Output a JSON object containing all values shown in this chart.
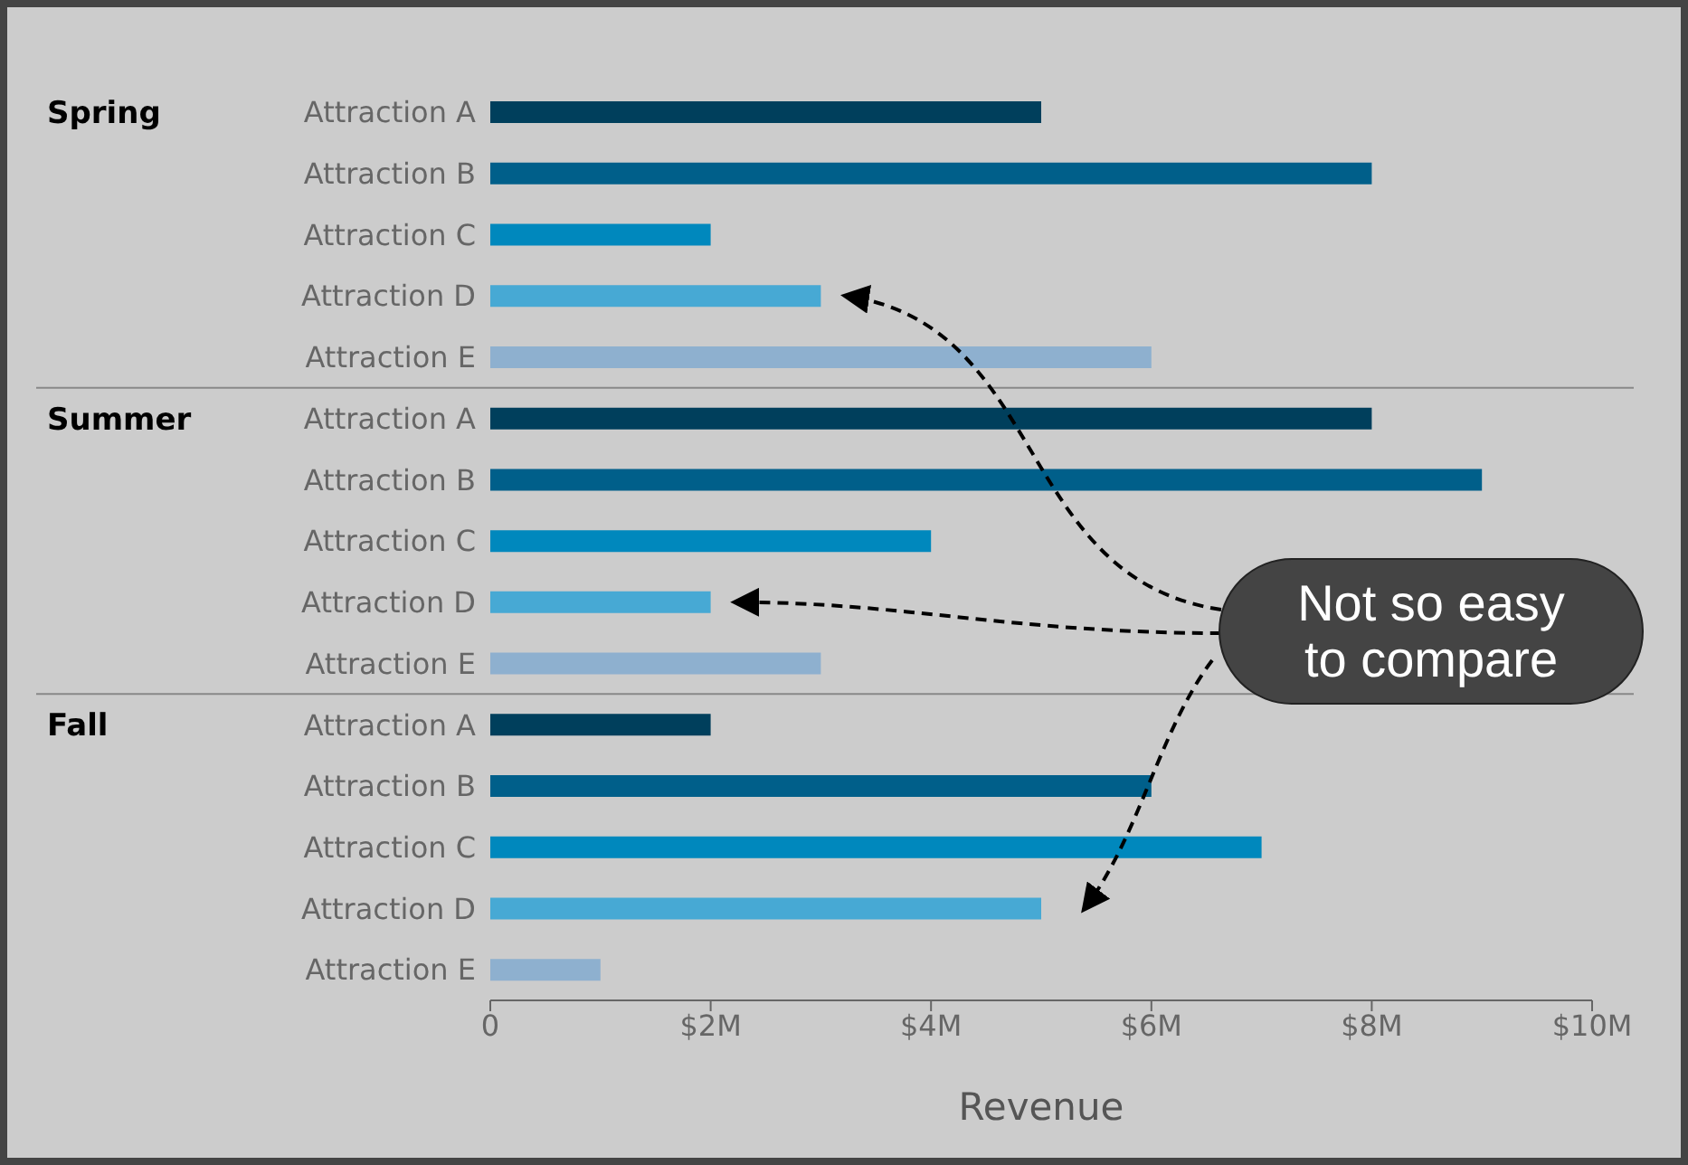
{
  "chart_data": {
    "type": "bar",
    "orientation": "horizontal",
    "xlabel": "Revenue",
    "categories": [
      "Attraction A",
      "Attraction B",
      "Attraction C",
      "Attraction D",
      "Attraction E",
      "Attraction A",
      "Attraction B",
      "Attraction C",
      "Attraction D",
      "Attraction E",
      "Attraction A",
      "Attraction B",
      "Attraction C",
      "Attraction D",
      "Attraction E"
    ],
    "values": [
      5,
      8,
      2,
      3,
      6,
      8,
      9,
      4,
      2,
      3,
      2,
      6,
      7,
      5,
      1
    ],
    "colors": [
      "#003f5c",
      "#005f8a",
      "#0088bd",
      "#47a9d4",
      "#8eb0cf",
      "#003f5c",
      "#005f8a",
      "#0088bd",
      "#47a9d4",
      "#8eb0cf",
      "#003f5c",
      "#005f8a",
      "#0088bd",
      "#47a9d4",
      "#8eb0cf"
    ],
    "xlim": [
      0,
      10
    ],
    "xticks": [
      0,
      {
        "value": 2,
        "label": "$2M"
      },
      {
        "value": 4,
        "label": "$4M"
      },
      {
        "value": 6,
        "label": "$6M"
      },
      {
        "value": 8,
        "label": "$8M"
      },
      {
        "value": 10,
        "label": "$10M"
      }
    ],
    "annotations": [
      "Spring",
      "Summer",
      "Fall",
      "Not so easy to compare"
    ]
  }
}
